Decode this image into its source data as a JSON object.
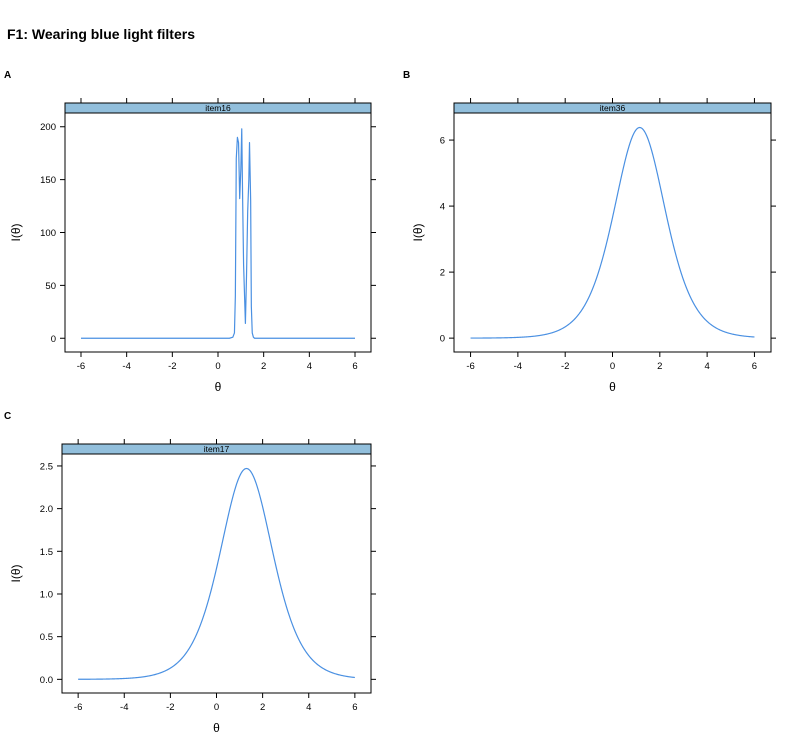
{
  "figure": {
    "title": "F1: Wearing blue light filters"
  },
  "style": {
    "line_color": "#4a90e2",
    "strip_color": "#92bfdc",
    "axis_color": "#000000"
  },
  "chart_data": [
    {
      "panel_label": "A",
      "type": "line",
      "strip_label": "item16",
      "xlabel": "θ",
      "ylabel": "I(θ)",
      "xlim": [
        -6.7,
        6.7
      ],
      "ylim": [
        -13,
        213
      ],
      "xticks": [
        -6,
        -4,
        -2,
        0,
        2,
        4,
        6
      ],
      "yticks": [
        0,
        50,
        100,
        150,
        200
      ],
      "ytick_labels": [
        "0",
        "50",
        "100",
        "150",
        "200"
      ],
      "grid": false,
      "x": [
        -6,
        0.5,
        0.65,
        0.72,
        0.76,
        0.8,
        0.85,
        0.9,
        0.95,
        1.0,
        1.04,
        1.08,
        1.12,
        1.2,
        1.25,
        1.3,
        1.35,
        1.38,
        1.43,
        1.46,
        1.5,
        1.55,
        1.6,
        1.7,
        6
      ],
      "y": [
        0,
        0,
        1,
        5,
        40,
        170,
        190,
        185,
        132,
        160,
        198,
        130,
        70,
        14,
        60,
        120,
        150,
        185,
        130,
        30,
        5,
        1,
        0,
        0,
        0
      ]
    },
    {
      "panel_label": "B",
      "type": "line",
      "strip_label": "item36",
      "xlabel": "θ",
      "ylabel": "I(θ)",
      "xlim": [
        -6.7,
        6.7
      ],
      "ylim": [
        -0.42,
        6.82
      ],
      "xticks": [
        -6,
        -4,
        -2,
        0,
        2,
        4,
        6
      ],
      "yticks": [
        0,
        2,
        4,
        6
      ],
      "ytick_labels": [
        "0",
        "2",
        "4",
        "6"
      ],
      "grid": false,
      "curve": {
        "form": "logistic_information",
        "peak": 6.38,
        "location": 1.15,
        "slope_scale": 1.36
      }
    },
    {
      "panel_label": "C",
      "type": "line",
      "strip_label": "item17",
      "xlabel": "θ",
      "ylabel": "I(θ)",
      "xlim": [
        -6.7,
        6.7
      ],
      "ylim": [
        -0.16,
        2.64
      ],
      "xticks": [
        -6,
        -4,
        -2,
        0,
        2,
        4,
        6
      ],
      "yticks": [
        0,
        0.5,
        1,
        1.5,
        2,
        2.5
      ],
      "ytick_labels": [
        "0.0",
        "0.5",
        "1.0",
        "1.5",
        "2.0",
        "2.5"
      ],
      "grid": false,
      "curve": {
        "form": "logistic_information",
        "peak": 2.47,
        "location": 1.3,
        "slope_scale": 1.3
      }
    }
  ]
}
